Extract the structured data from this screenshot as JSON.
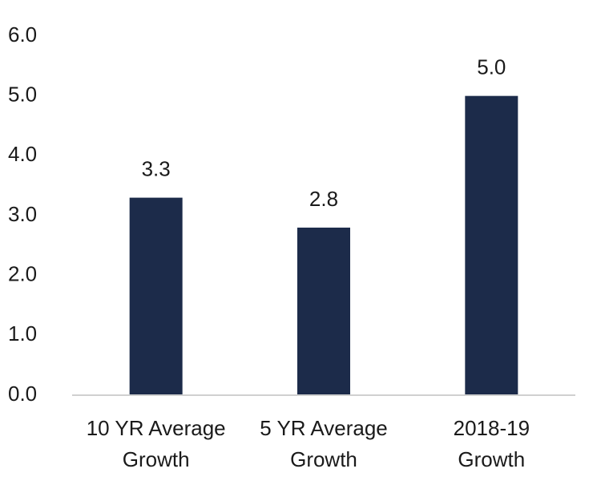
{
  "chart_data": {
    "type": "bar",
    "categories": [
      [
        "10 YR Average",
        "Growth"
      ],
      [
        "5 YR Average",
        "Growth"
      ],
      [
        "2018-19",
        "Growth"
      ]
    ],
    "values": [
      3.3,
      2.8,
      5.0
    ],
    "data_labels": [
      "3.3",
      "2.8",
      "5.0"
    ],
    "y_ticks": [
      "0.0",
      "1.0",
      "2.0",
      "3.0",
      "4.0",
      "5.0",
      "6.0"
    ],
    "ylim": [
      0,
      6
    ],
    "title": "",
    "xlabel": "",
    "ylabel": "",
    "grid": false,
    "legend": "none",
    "colors": {
      "bar": "#1c2b4a",
      "axis": "#d0d0d0",
      "text": "#1a1a1a"
    }
  }
}
